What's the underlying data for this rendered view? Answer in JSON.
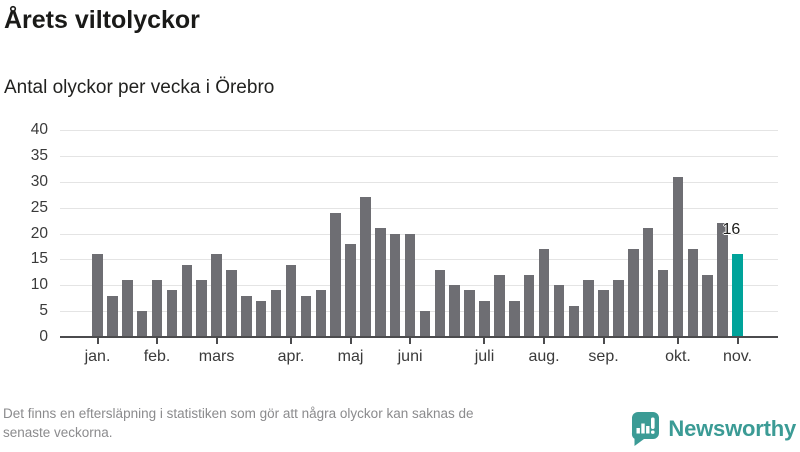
{
  "header": {
    "title": "Årets viltolyckor",
    "subtitle": "Antal olyckor per vecka i Örebro"
  },
  "chart_data": {
    "type": "bar",
    "title": "Årets viltolyckor",
    "subtitle": "Antal olyckor per vecka i Örebro",
    "ylabel": "Antal olyckor per vecka",
    "ylim": [
      0,
      40
    ],
    "y_ticks": [
      0,
      5,
      10,
      15,
      20,
      25,
      30,
      35,
      40
    ],
    "grid": true,
    "values": [
      16,
      8,
      11,
      5,
      11,
      9,
      14,
      11,
      16,
      13,
      8,
      7,
      9,
      14,
      8,
      9,
      24,
      18,
      27,
      21,
      20,
      20,
      5,
      13,
      10,
      9,
      7,
      12,
      7,
      12,
      17,
      10,
      6,
      11,
      9,
      11,
      17,
      21,
      13,
      31,
      17,
      12,
      22,
      16
    ],
    "month_ticks": [
      {
        "label": "jan.",
        "bar_index": 0
      },
      {
        "label": "feb.",
        "bar_index": 4
      },
      {
        "label": "mars",
        "bar_index": 8
      },
      {
        "label": "apr.",
        "bar_index": 13
      },
      {
        "label": "maj",
        "bar_index": 17
      },
      {
        "label": "juni",
        "bar_index": 21
      },
      {
        "label": "juli",
        "bar_index": 26
      },
      {
        "label": "aug.",
        "bar_index": 30
      },
      {
        "label": "sep.",
        "bar_index": 34
      },
      {
        "label": "okt.",
        "bar_index": 39
      },
      {
        "label": "nov.",
        "bar_index": 43
      }
    ],
    "highlight_index": 43,
    "highlight_label": "16",
    "bar_color": "#6e6e73",
    "highlight_color": "#00a39a"
  },
  "footer": {
    "note_lines": [
      "Det finns en eftersläpning i statistiken som gör att några olyckor kan saknas de",
      "senaste veckorna."
    ],
    "brand": "Newsworthy",
    "brand_color": "#3b9b95"
  }
}
